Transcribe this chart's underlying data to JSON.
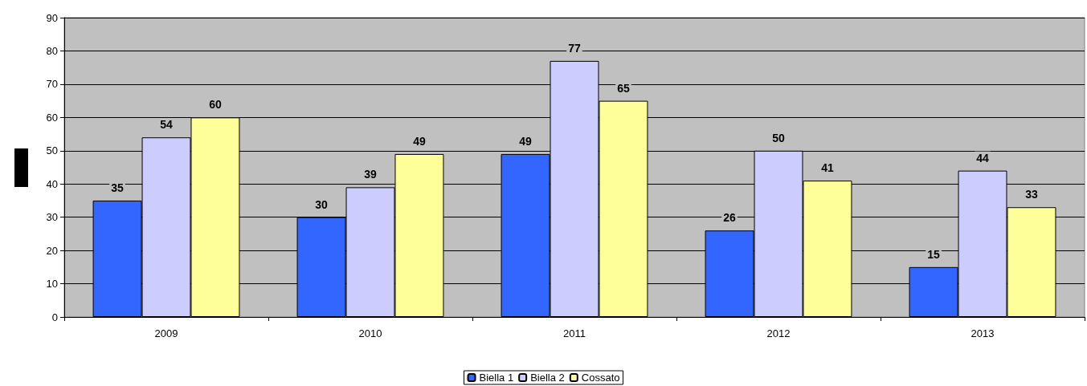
{
  "chart_data": {
    "type": "bar",
    "categories": [
      "2009",
      "2010",
      "2011",
      "2012",
      "2013"
    ],
    "series": [
      {
        "name": "Biella 1",
        "color": "#3366ff",
        "values": [
          35,
          30,
          49,
          26,
          15
        ]
      },
      {
        "name": "Biella 2",
        "color": "#ccccff",
        "values": [
          54,
          39,
          77,
          50,
          44
        ]
      },
      {
        "name": "Cossato",
        "color": "#ffff99",
        "values": [
          60,
          49,
          65,
          41,
          33
        ]
      }
    ],
    "ylim": [
      0,
      90
    ],
    "yticks": [
      0,
      10,
      20,
      30,
      40,
      50,
      60,
      70,
      80,
      90
    ],
    "grid": "y",
    "legend": "bottom",
    "data_labels": true
  }
}
